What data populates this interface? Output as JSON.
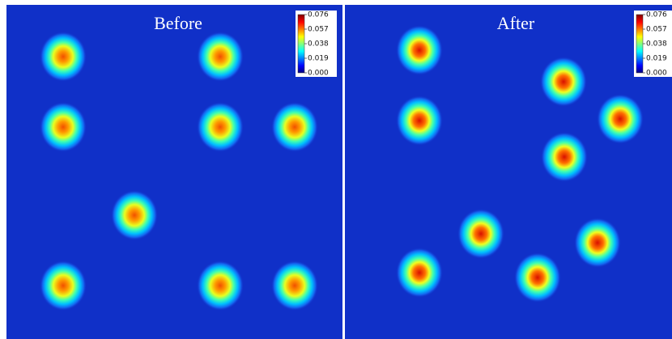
{
  "panels": [
    {
      "title": "Before",
      "colorbar": {
        "clim": [
          0,
          0.076
        ],
        "ticks": [
          {
            "value": 0,
            "label": "0.000"
          },
          0.019,
          0.038,
          0.057,
          0.076
        ]
      }
    },
    {
      "title": "After",
      "colorbar": {
        "clim": [
          0,
          0.076
        ],
        "ticks": [
          {
            "value": 0,
            "label": "0.000"
          },
          0.019,
          0.038,
          0.057,
          0.076
        ]
      }
    }
  ]
}
